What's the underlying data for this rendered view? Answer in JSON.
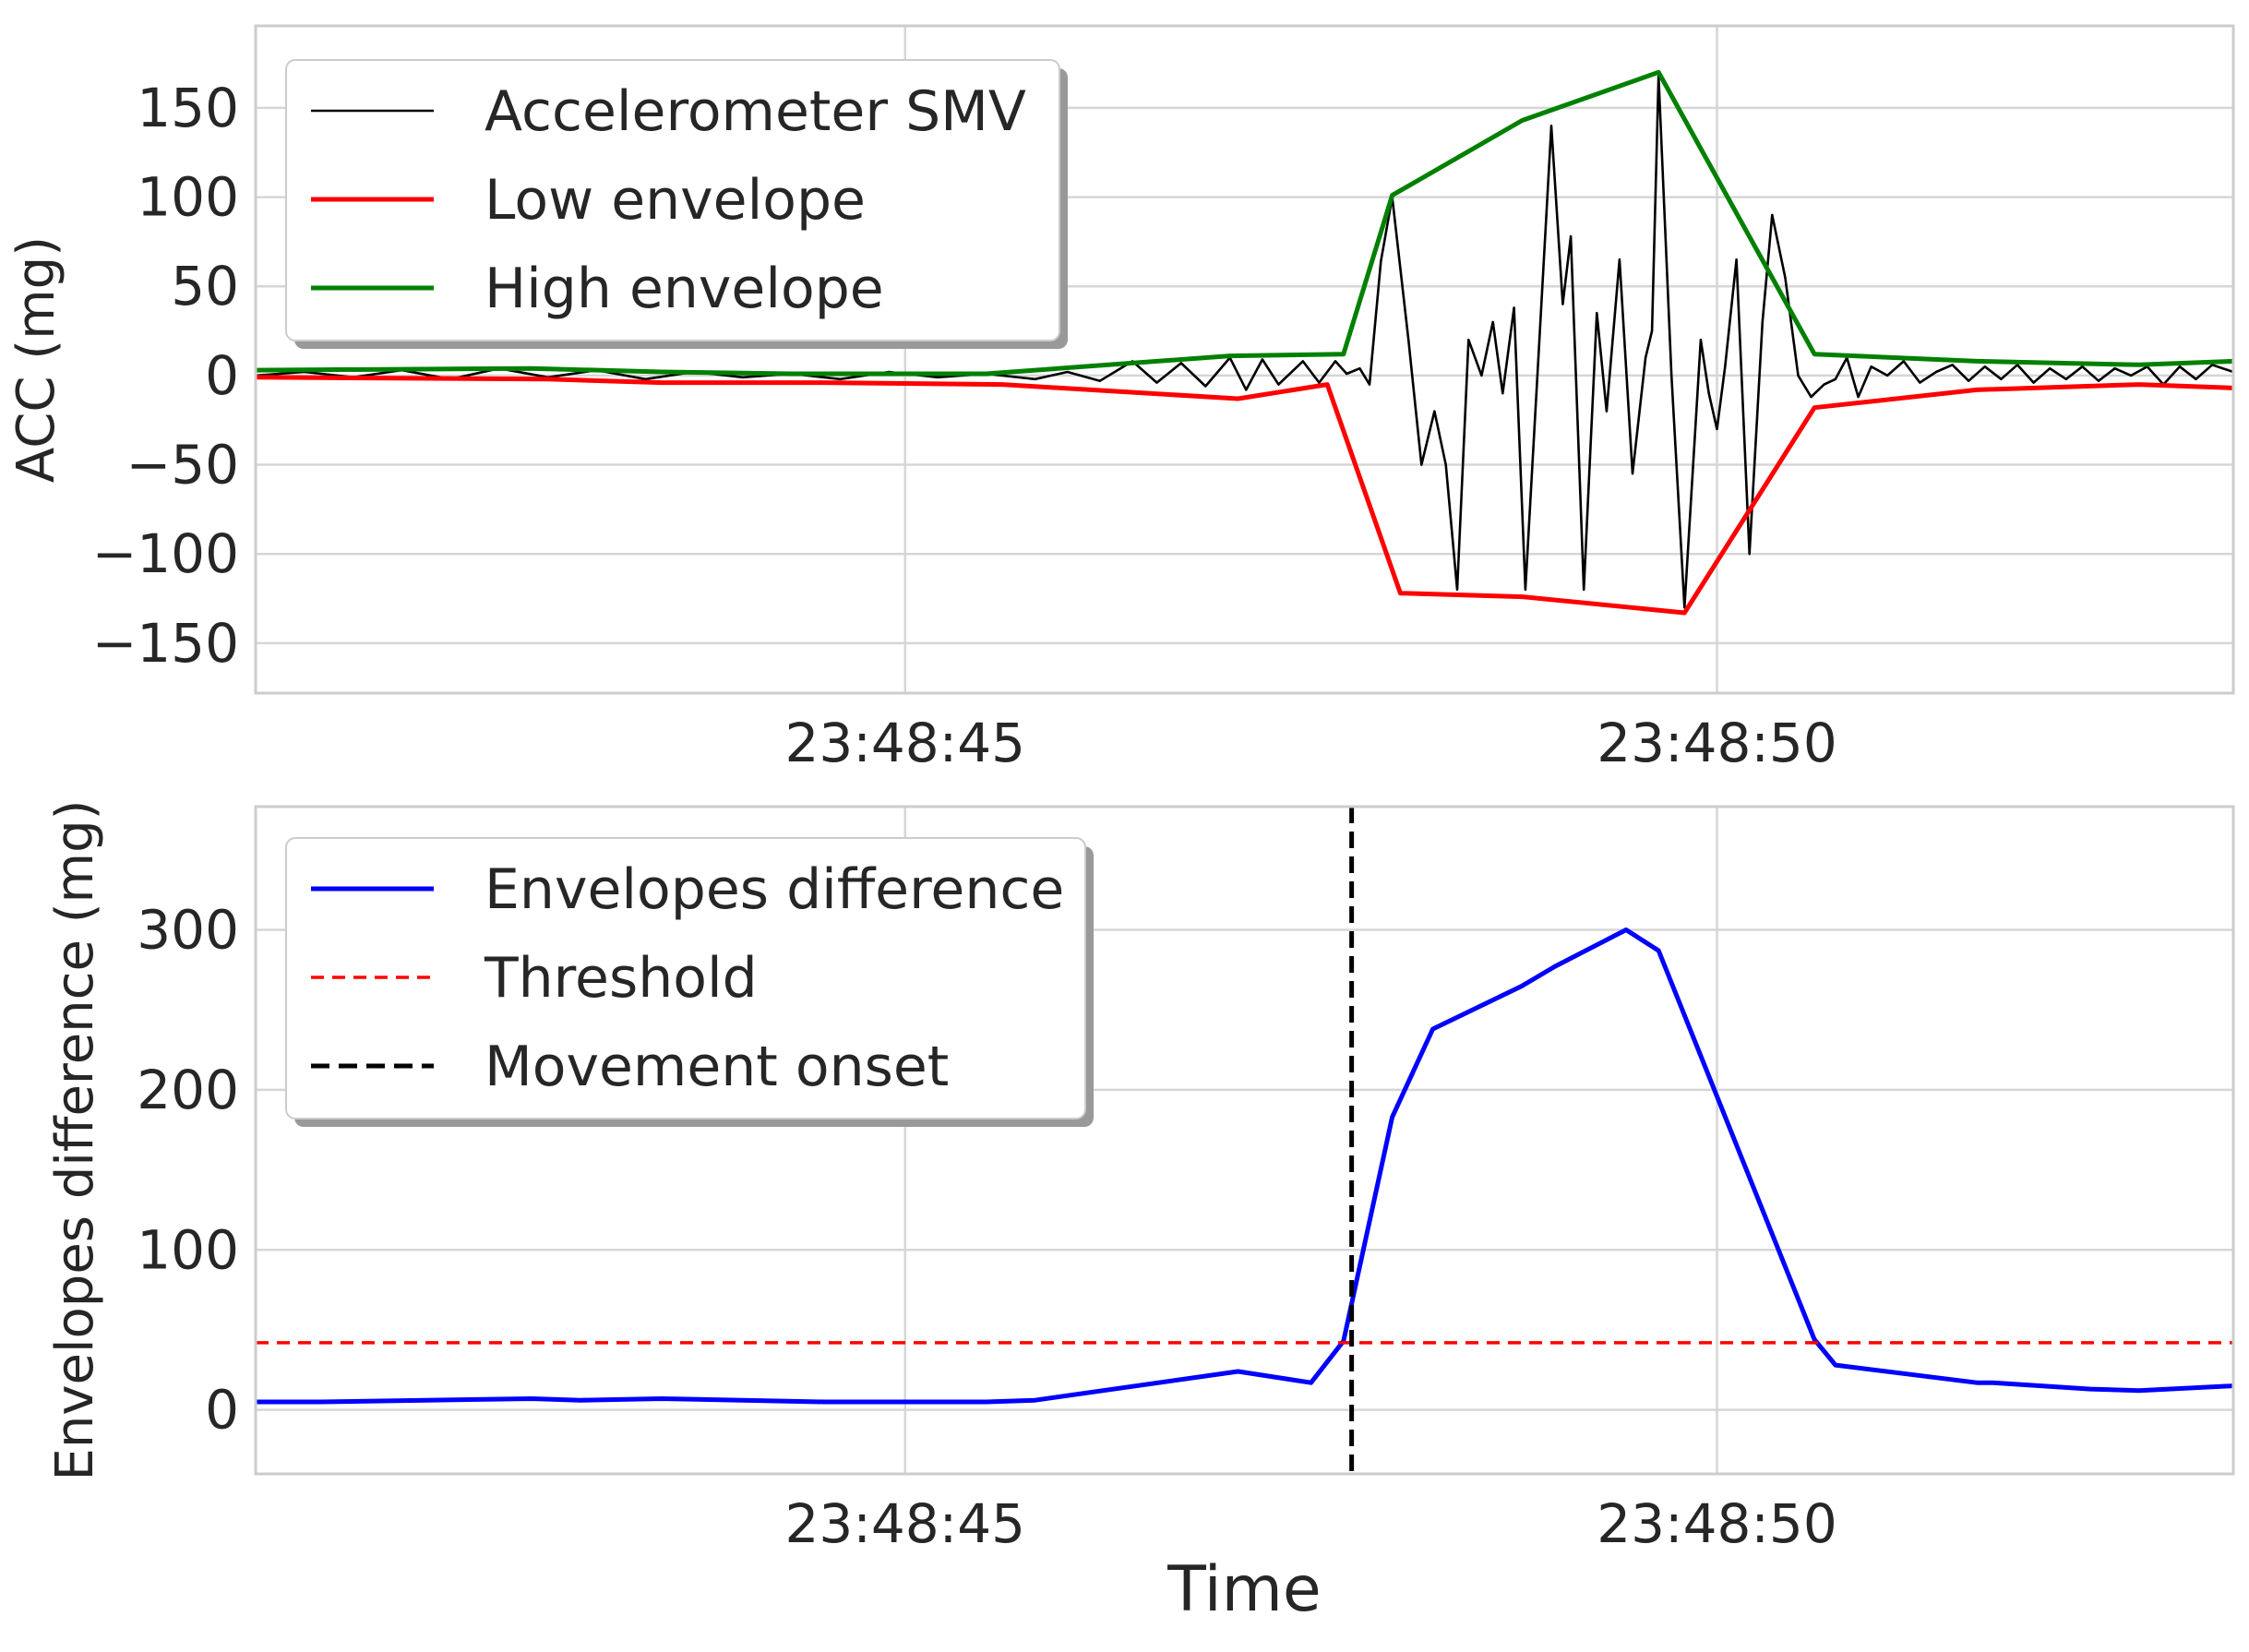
{
  "chart_data": [
    {
      "type": "line",
      "ylabel": "ACC (mg)",
      "xlabel": "",
      "x_unit": "seconds after 23:48:41.0",
      "xlim": [
        0.0,
        12.18
      ],
      "ylim": [
        -178,
        196
      ],
      "yticks": [
        150,
        100,
        50,
        0,
        -50,
        -100,
        -150
      ],
      "ytick_labels": [
        "150",
        "100",
        "50",
        "0",
        "−50",
        "−100",
        "−150"
      ],
      "xticks": [
        4.0,
        9.0
      ],
      "xtick_labels": [
        "23:48:45",
        "23:48:50"
      ],
      "grid": true,
      "legend_position": "top-left",
      "series": [
        {
          "name": "Accelerometer SMV",
          "color": "#000000",
          "style": "solid",
          "points": [
            [
              0.0,
              0
            ],
            [
              0.3,
              2
            ],
            [
              0.6,
              -1
            ],
            [
              0.9,
              3
            ],
            [
              1.2,
              -2
            ],
            [
              1.5,
              4
            ],
            [
              1.8,
              -1
            ],
            [
              2.1,
              3
            ],
            [
              2.4,
              -2
            ],
            [
              2.7,
              2
            ],
            [
              3.0,
              -1
            ],
            [
              3.3,
              1
            ],
            [
              3.6,
              -2
            ],
            [
              3.9,
              2
            ],
            [
              4.2,
              -1
            ],
            [
              4.5,
              1
            ],
            [
              4.8,
              -2
            ],
            [
              5.0,
              2
            ],
            [
              5.2,
              -3
            ],
            [
              5.4,
              8
            ],
            [
              5.55,
              -4
            ],
            [
              5.7,
              7
            ],
            [
              5.85,
              -6
            ],
            [
              6.0,
              10
            ],
            [
              6.1,
              -8
            ],
            [
              6.2,
              9
            ],
            [
              6.3,
              -5
            ],
            [
              6.45,
              8
            ],
            [
              6.55,
              -4
            ],
            [
              6.65,
              8
            ],
            [
              6.72,
              1
            ],
            [
              6.8,
              4
            ],
            [
              6.86,
              -5
            ],
            [
              6.93,
              64
            ],
            [
              7.0,
              100
            ],
            [
              7.1,
              20
            ],
            [
              7.18,
              -50
            ],
            [
              7.26,
              -20
            ],
            [
              7.33,
              -50
            ],
            [
              7.4,
              -120
            ],
            [
              7.47,
              20
            ],
            [
              7.55,
              0
            ],
            [
              7.62,
              30
            ],
            [
              7.68,
              -10
            ],
            [
              7.75,
              38
            ],
            [
              7.82,
              -120
            ],
            [
              7.9,
              10
            ],
            [
              7.98,
              140
            ],
            [
              8.05,
              40
            ],
            [
              8.1,
              78
            ],
            [
              8.18,
              -120
            ],
            [
              8.26,
              35
            ],
            [
              8.32,
              -20
            ],
            [
              8.4,
              65
            ],
            [
              8.48,
              -55
            ],
            [
              8.56,
              10
            ],
            [
              8.6,
              25
            ],
            [
              8.64,
              168
            ],
            [
              8.72,
              0
            ],
            [
              8.8,
              -130
            ],
            [
              8.9,
              20
            ],
            [
              8.95,
              -10
            ],
            [
              9.0,
              -30
            ],
            [
              9.05,
              5
            ],
            [
              9.12,
              65
            ],
            [
              9.2,
              -100
            ],
            [
              9.28,
              30
            ],
            [
              9.34,
              90
            ],
            [
              9.42,
              55
            ],
            [
              9.5,
              0
            ],
            [
              9.58,
              -12
            ],
            [
              9.66,
              -5
            ],
            [
              9.73,
              -2
            ],
            [
              9.8,
              10
            ],
            [
              9.87,
              -12
            ],
            [
              9.95,
              5
            ],
            [
              10.05,
              0
            ],
            [
              10.15,
              8
            ],
            [
              10.25,
              -4
            ],
            [
              10.35,
              2
            ],
            [
              10.45,
              6
            ],
            [
              10.55,
              -3
            ],
            [
              10.65,
              5
            ],
            [
              10.75,
              -2
            ],
            [
              10.85,
              6
            ],
            [
              10.95,
              -4
            ],
            [
              11.05,
              4
            ],
            [
              11.15,
              -2
            ],
            [
              11.25,
              5
            ],
            [
              11.35,
              -3
            ],
            [
              11.45,
              4
            ],
            [
              11.55,
              0
            ],
            [
              11.65,
              5
            ],
            [
              11.75,
              -5
            ],
            [
              11.85,
              5
            ],
            [
              11.95,
              -2
            ],
            [
              12.05,
              6
            ],
            [
              12.18,
              2
            ]
          ]
        },
        {
          "name": "Low envelope",
          "color": "#ff0000",
          "style": "solid",
          "points": [
            [
              0.0,
              -1
            ],
            [
              1.8,
              -2
            ],
            [
              2.5,
              -4
            ],
            [
              3.5,
              -4
            ],
            [
              4.6,
              -5
            ],
            [
              6.05,
              -13
            ],
            [
              6.6,
              -5
            ],
            [
              7.05,
              -122
            ],
            [
              7.8,
              -124
            ],
            [
              8.8,
              -133
            ],
            [
              9.6,
              -18
            ],
            [
              10.6,
              -8
            ],
            [
              11.6,
              -5
            ],
            [
              12.18,
              -7
            ]
          ]
        },
        {
          "name": "High envelope",
          "color": "#008000",
          "style": "solid",
          "points": [
            [
              0.0,
              3
            ],
            [
              1.7,
              4
            ],
            [
              2.5,
              2
            ],
            [
              3.3,
              1
            ],
            [
              4.5,
              1
            ],
            [
              6.0,
              11
            ],
            [
              6.7,
              12
            ],
            [
              7.0,
              101
            ],
            [
              7.8,
              143
            ],
            [
              8.64,
              170
            ],
            [
              9.6,
              12
            ],
            [
              10.6,
              8
            ],
            [
              11.6,
              6
            ],
            [
              12.18,
              8
            ]
          ]
        }
      ]
    },
    {
      "type": "line",
      "ylabel": "Envelopes difference (mg)",
      "xlabel": "Time",
      "x_unit": "seconds after 23:48:41.0",
      "xlim": [
        0.0,
        12.18
      ],
      "ylim": [
        -40,
        377
      ],
      "yticks": [
        300,
        200,
        100,
        0
      ],
      "ytick_labels": [
        "300",
        "200",
        "100",
        "0"
      ],
      "xticks": [
        4.0,
        9.0
      ],
      "xtick_labels": [
        "23:48:45",
        "23:48:50"
      ],
      "grid": true,
      "legend_position": "top-left",
      "series": [
        {
          "name": "Envelopes difference",
          "color": "#0000ff",
          "style": "solid",
          "points": [
            [
              0.0,
              5
            ],
            [
              0.4,
              5
            ],
            [
              1.7,
              7
            ],
            [
              2.0,
              6
            ],
            [
              2.5,
              7
            ],
            [
              3.5,
              5
            ],
            [
              4.0,
              5
            ],
            [
              4.5,
              5
            ],
            [
              4.8,
              6
            ],
            [
              6.05,
              24
            ],
            [
              6.5,
              17
            ],
            [
              6.7,
              43
            ],
            [
              7.0,
              183
            ],
            [
              7.25,
              238
            ],
            [
              7.8,
              265
            ],
            [
              8.0,
              277
            ],
            [
              8.44,
              300
            ],
            [
              8.64,
              287
            ],
            [
              9.6,
              44
            ],
            [
              9.73,
              28
            ],
            [
              10.6,
              17
            ],
            [
              10.7,
              17
            ],
            [
              11.3,
              13
            ],
            [
              11.6,
              12
            ],
            [
              12.18,
              15
            ]
          ]
        },
        {
          "name": "Threshold",
          "color": "#ff0000",
          "style": "dashed",
          "y": 42
        },
        {
          "name": "Movement onset",
          "color": "#000000",
          "style": "dashed",
          "x": 6.75
        }
      ]
    }
  ]
}
